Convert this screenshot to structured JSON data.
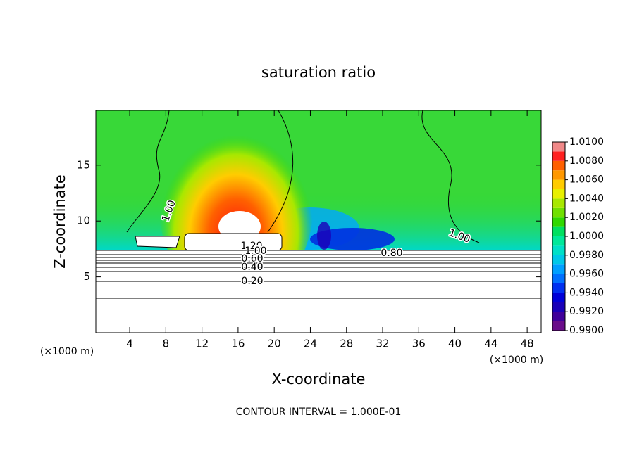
{
  "chart_data": {
    "type": "contour",
    "title": "saturation ratio",
    "xlabel": "X-coordinate",
    "ylabel": "Z-coordinate",
    "x_unit": "(×1000 m)",
    "y_unit": "(×1000 m)",
    "footnote": "CONTOUR INTERVAL = 1.000E-01",
    "xlim": [
      0.25,
      49.55
    ],
    "ylim": [
      0,
      19.9
    ],
    "xticks": [
      4,
      8,
      12,
      16,
      20,
      24,
      28,
      32,
      36,
      40,
      44,
      48
    ],
    "yticks": [
      5,
      10,
      15
    ],
    "contour_labels": [
      "1.00",
      "1.20",
      "1.00",
      "0.60",
      "0.40",
      "0.20",
      "0.80",
      "1.00"
    ],
    "colorbar": {
      "lim": [
        0.99,
        1.01
      ],
      "levels": [
        0.99,
        0.991,
        0.992,
        0.993,
        0.994,
        0.995,
        0.996,
        0.997,
        0.998,
        0.999,
        1.0,
        1.001,
        1.002,
        1.003,
        1.004,
        1.005,
        1.006,
        1.007,
        1.008,
        1.009,
        1.01
      ],
      "colors": [
        "#6a0d8a",
        "#40009a",
        "#1a00b8",
        "#0000d8",
        "#0030f0",
        "#0070ff",
        "#00a0ff",
        "#00c8e8",
        "#00e0c8",
        "#00e89a",
        "#00e060",
        "#30d800",
        "#70e000",
        "#a8e800",
        "#e8f000",
        "#ffcc00",
        "#ff9800",
        "#ff6000",
        "#ff2020",
        "#f08888"
      ],
      "ticks": [
        {
          "value": 0.99,
          "label": "0.9900"
        },
        {
          "value": 0.992,
          "label": "0.9920"
        },
        {
          "value": 0.994,
          "label": "0.9940"
        },
        {
          "value": 0.996,
          "label": "0.9960"
        },
        {
          "value": 0.998,
          "label": "0.9980"
        },
        {
          "value": 1.0,
          "label": "1.0000"
        },
        {
          "value": 1.002,
          "label": "1.0020"
        },
        {
          "value": 1.004,
          "label": "1.0040"
        },
        {
          "value": 1.006,
          "label": "1.0060"
        },
        {
          "value": 1.008,
          "label": "1.0080"
        },
        {
          "value": 1.01,
          "label": "1.0100"
        }
      ]
    }
  }
}
